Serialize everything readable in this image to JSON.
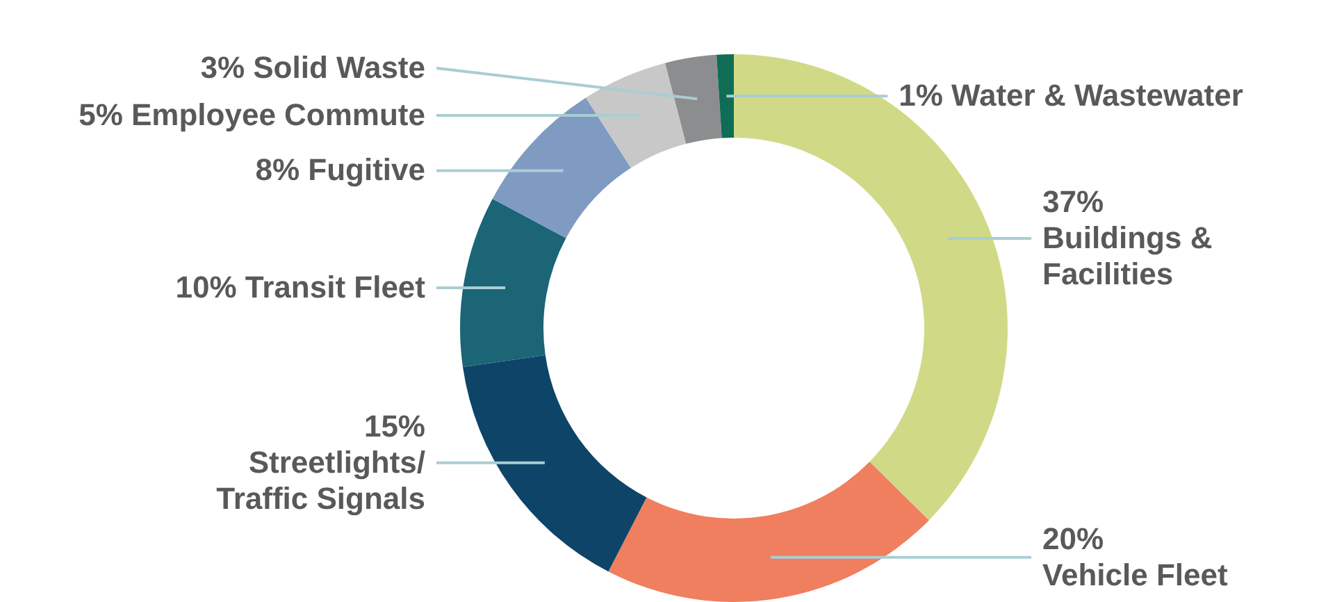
{
  "chart_data": {
    "type": "donut",
    "categories": [
      "Buildings & Facilities",
      "Vehicle Fleet",
      "Streetlights/Traffic Signals",
      "Transit Fleet",
      "Fugitive",
      "Employee Commute",
      "Solid Waste",
      "Water & Wastewater"
    ],
    "values": [
      37,
      20,
      15,
      10,
      8,
      5,
      3,
      1
    ],
    "value_labels": [
      "37%",
      "20%",
      "15%",
      "10%",
      "8%",
      "5%",
      "3%",
      "1%"
    ],
    "colors": [
      "#d0da86",
      "#ef7f5f",
      "#0d4468",
      "#1b6577",
      "#7f9bc2",
      "#c8c8c8",
      "#8b8d8f",
      "#0f6d55"
    ]
  }
}
